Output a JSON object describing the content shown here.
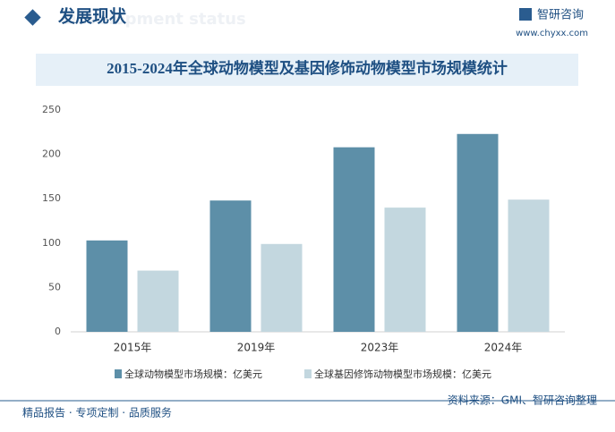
{
  "header": {
    "title": "发展现状",
    "background_text": "Development status",
    "brand": "智研咨询",
    "website": "www.chyxx.com"
  },
  "chart_data": {
    "type": "bar",
    "title": "2015-2024年全球动物模型及基因修饰动物模型市场规模统计",
    "categories": [
      "2015年",
      "2019年",
      "2023年",
      "2024年"
    ],
    "series": [
      {
        "name": "全球动物模型市场规模：亿美元",
        "color": "#5d8fa8",
        "values": [
          103,
          148,
          208,
          223
        ]
      },
      {
        "name": "全球基因修饰动物模型市场规模：亿美元",
        "color": "#c3d7df",
        "values": [
          69,
          99,
          140,
          149
        ]
      }
    ],
    "ylim": [
      0,
      250
    ],
    "yticks": [
      0,
      50,
      100,
      150,
      200,
      250
    ],
    "grid": false,
    "legend": "bottom"
  },
  "footer": {
    "left": "精品报告 · 专项定制 · 品质服务",
    "source": "资料来源：GMI、智研咨询整理"
  }
}
